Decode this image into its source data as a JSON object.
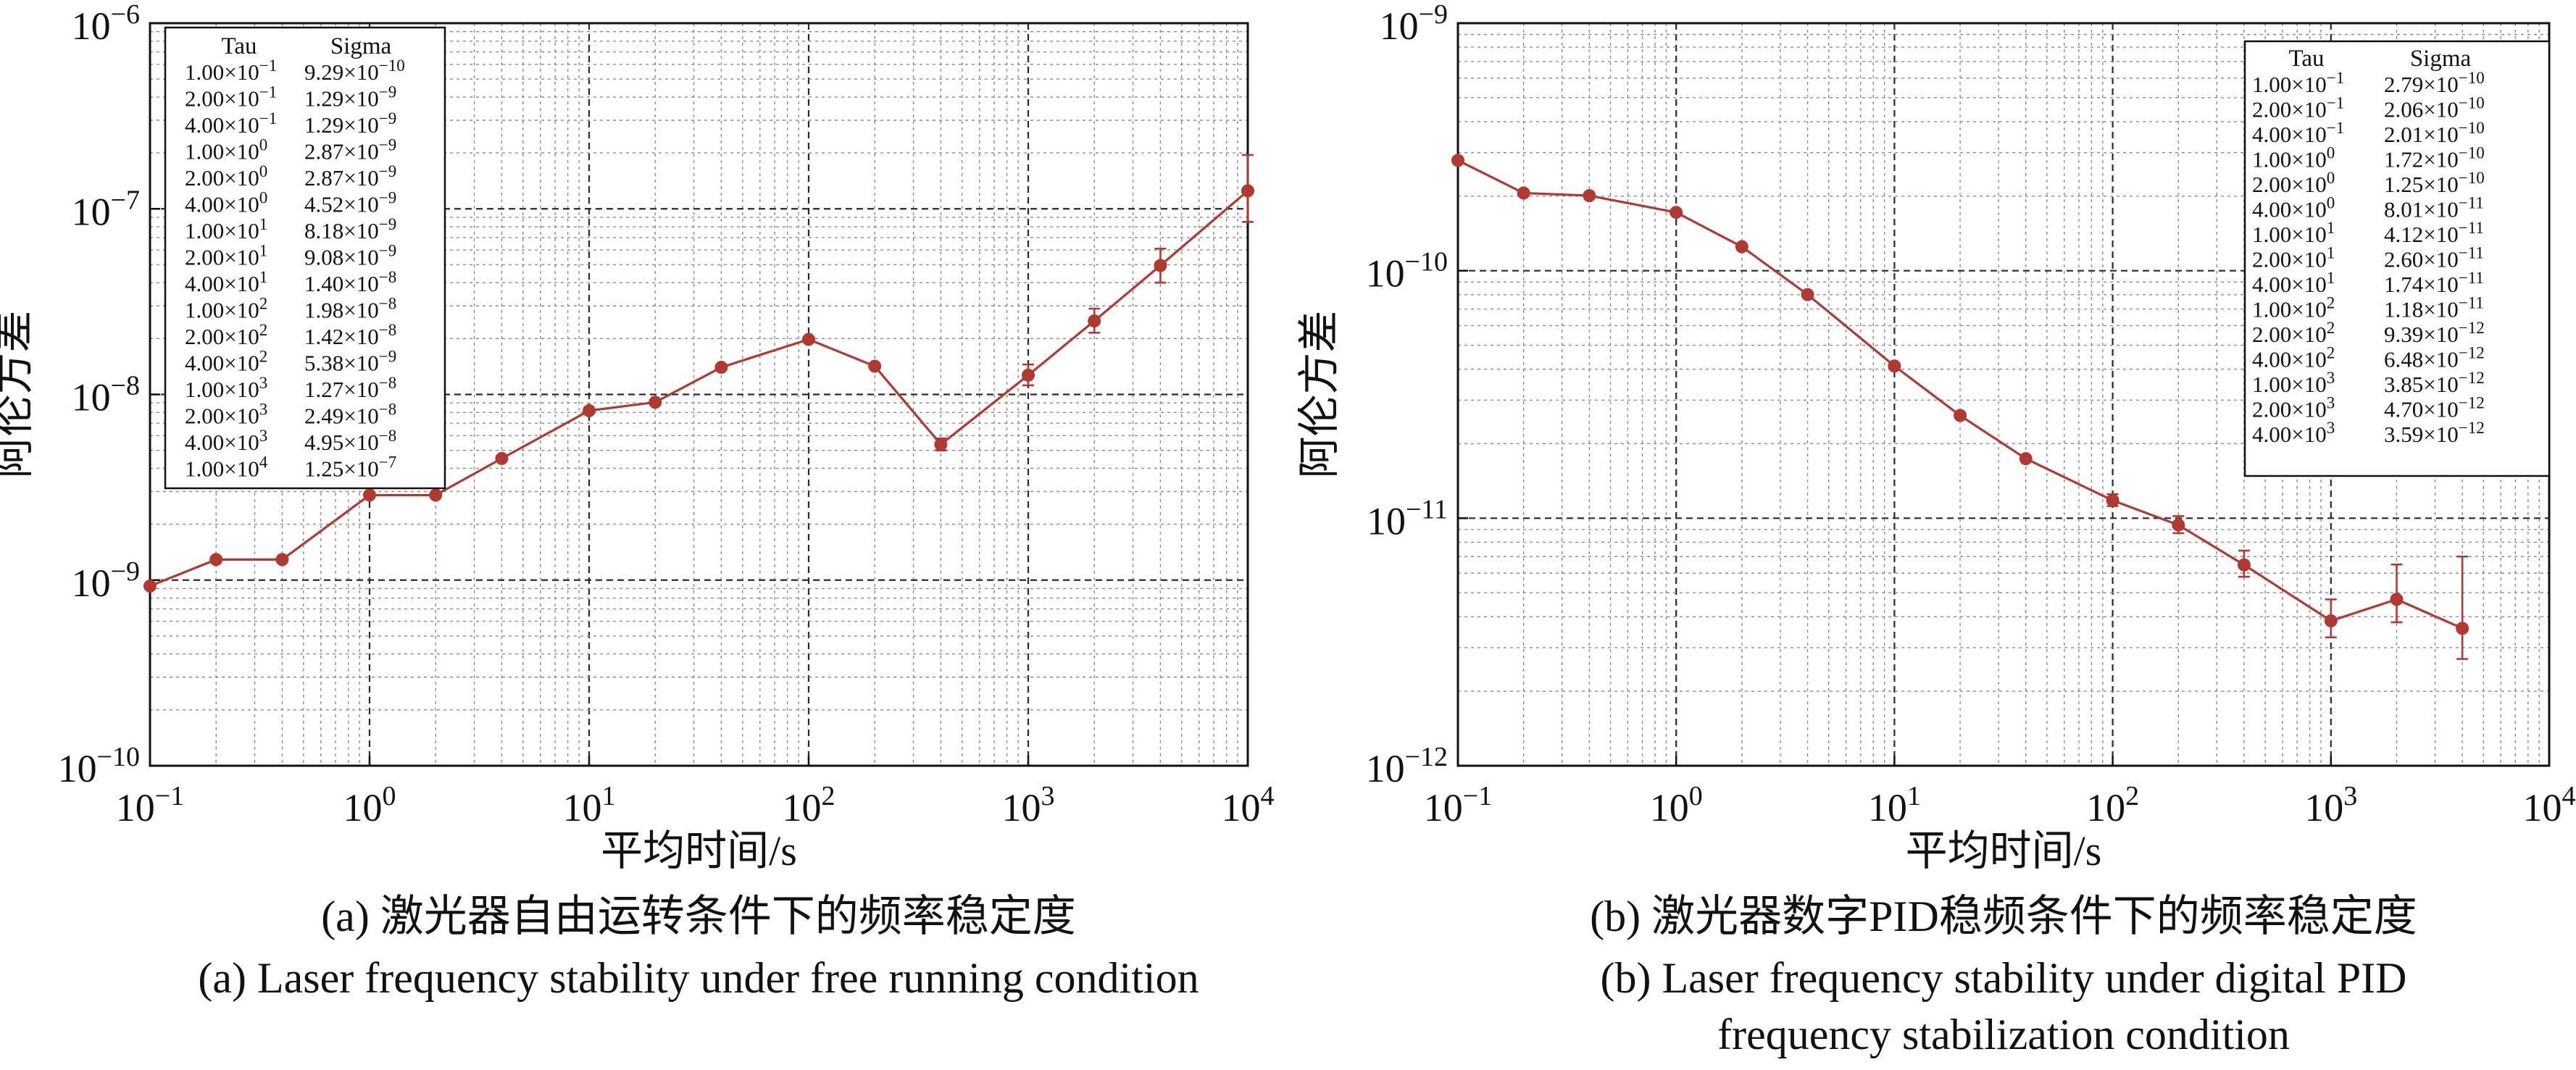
{
  "colors": {
    "series": "#b03a32",
    "grid_minor": "#8a8a8a",
    "grid_major": "#2a2a2a",
    "axis": "#111111"
  },
  "chart_data": [
    {
      "type": "line",
      "panel": "a",
      "xscale": "log",
      "yscale": "log",
      "xlim": [
        0.1,
        10000
      ],
      "ylim": [
        1e-10,
        1e-06
      ],
      "xlabel": "平均时间/s",
      "ylabel": "阿伦方差",
      "x_ticks": [
        {
          "base": "10",
          "exp": "−1"
        },
        {
          "base": "10",
          "exp": "0"
        },
        {
          "base": "10",
          "exp": "1"
        },
        {
          "base": "10",
          "exp": "2"
        },
        {
          "base": "10",
          "exp": "3"
        },
        {
          "base": "10",
          "exp": "4"
        }
      ],
      "y_ticks": [
        {
          "base": "10",
          "exp": "−10"
        },
        {
          "base": "10",
          "exp": "−9"
        },
        {
          "base": "10",
          "exp": "−8"
        },
        {
          "base": "10",
          "exp": "−7"
        },
        {
          "base": "10",
          "exp": "−6"
        }
      ],
      "grid": true,
      "legend_position": "top-left",
      "caption_cn": "(a) 激光器自由运转条件下的频率稳定度",
      "caption_en": [
        "(a) Laser frequency stability under free running condition"
      ],
      "table_headers": [
        "Tau",
        "Sigma"
      ],
      "table_rows": [
        {
          "tau_m": "1.00",
          "tau_e": "−1",
          "sig_m": "9.29",
          "sig_e": "−10"
        },
        {
          "tau_m": "2.00",
          "tau_e": "−1",
          "sig_m": "1.29",
          "sig_e": "−9"
        },
        {
          "tau_m": "4.00",
          "tau_e": "−1",
          "sig_m": "1.29",
          "sig_e": "−9"
        },
        {
          "tau_m": "1.00",
          "tau_e": "0",
          "sig_m": "2.87",
          "sig_e": "−9"
        },
        {
          "tau_m": "2.00",
          "tau_e": "0",
          "sig_m": "2.87",
          "sig_e": "−9"
        },
        {
          "tau_m": "4.00",
          "tau_e": "0",
          "sig_m": "4.52",
          "sig_e": "−9"
        },
        {
          "tau_m": "1.00",
          "tau_e": "1",
          "sig_m": "8.18",
          "sig_e": "−9"
        },
        {
          "tau_m": "2.00",
          "tau_e": "1",
          "sig_m": "9.08",
          "sig_e": "−9"
        },
        {
          "tau_m": "4.00",
          "tau_e": "1",
          "sig_m": "1.40",
          "sig_e": "−8"
        },
        {
          "tau_m": "1.00",
          "tau_e": "2",
          "sig_m": "1.98",
          "sig_e": "−8"
        },
        {
          "tau_m": "2.00",
          "tau_e": "2",
          "sig_m": "1.42",
          "sig_e": "−8"
        },
        {
          "tau_m": "4.00",
          "tau_e": "2",
          "sig_m": "5.38",
          "sig_e": "−9"
        },
        {
          "tau_m": "1.00",
          "tau_e": "3",
          "sig_m": "1.27",
          "sig_e": "−8"
        },
        {
          "tau_m": "2.00",
          "tau_e": "3",
          "sig_m": "2.49",
          "sig_e": "−8"
        },
        {
          "tau_m": "4.00",
          "tau_e": "3",
          "sig_m": "4.95",
          "sig_e": "−8"
        },
        {
          "tau_m": "1.00",
          "tau_e": "4",
          "sig_m": "1.25",
          "sig_e": "−7"
        }
      ],
      "x": [
        0.1,
        0.2,
        0.4,
        1,
        2,
        4,
        10,
        20,
        40,
        100,
        200,
        400,
        1000,
        2000,
        4000,
        10000
      ],
      "y": [
        9.29e-10,
        1.29e-09,
        1.29e-09,
        2.87e-09,
        2.87e-09,
        4.52e-09,
        8.18e-09,
        9.08e-09,
        1.4e-08,
        1.98e-08,
        1.42e-08,
        5.38e-09,
        1.27e-08,
        2.49e-08,
        4.95e-08,
        1.25e-07
      ],
      "error_bars": [
        {
          "x": 400,
          "low": 5e-09,
          "high": 5.8e-09
        },
        {
          "x": 1000,
          "low": 1.12e-08,
          "high": 1.45e-08
        },
        {
          "x": 2000,
          "low": 2.15e-08,
          "high": 2.9e-08
        },
        {
          "x": 4000,
          "low": 4e-08,
          "high": 6.1e-08
        },
        {
          "x": 10000,
          "low": 8.5e-08,
          "high": 1.95e-07
        }
      ]
    },
    {
      "type": "line",
      "panel": "b",
      "xscale": "log",
      "yscale": "log",
      "xlim": [
        0.1,
        10000
      ],
      "ylim": [
        1e-12,
        1e-09
      ],
      "xlabel": "平均时间/s",
      "ylabel": "阿伦方差",
      "x_ticks": [
        {
          "base": "10",
          "exp": "−1"
        },
        {
          "base": "10",
          "exp": "0"
        },
        {
          "base": "10",
          "exp": "1"
        },
        {
          "base": "10",
          "exp": "2"
        },
        {
          "base": "10",
          "exp": "3"
        },
        {
          "base": "10",
          "exp": "4"
        }
      ],
      "y_ticks": [
        {
          "base": "10",
          "exp": "−12"
        },
        {
          "base": "10",
          "exp": "−11"
        },
        {
          "base": "10",
          "exp": "−10"
        },
        {
          "base": "10",
          "exp": "−9"
        }
      ],
      "grid": true,
      "legend_position": "top-right",
      "caption_cn": "(b) 激光器数字PID稳频条件下的频率稳定度",
      "caption_en": [
        "(b) Laser frequency stability under digital PID",
        "frequency stabilization condition"
      ],
      "table_headers": [
        "Tau",
        "Sigma"
      ],
      "table_rows": [
        {
          "tau_m": "1.00",
          "tau_e": "−1",
          "sig_m": "2.79",
          "sig_e": "−10"
        },
        {
          "tau_m": "2.00",
          "tau_e": "−1",
          "sig_m": "2.06",
          "sig_e": "−10"
        },
        {
          "tau_m": "4.00",
          "tau_e": "−1",
          "sig_m": "2.01",
          "sig_e": "−10"
        },
        {
          "tau_m": "1.00",
          "tau_e": "0",
          "sig_m": "1.72",
          "sig_e": "−10"
        },
        {
          "tau_m": "2.00",
          "tau_e": "0",
          "sig_m": "1.25",
          "sig_e": "−10"
        },
        {
          "tau_m": "4.00",
          "tau_e": "0",
          "sig_m": "8.01",
          "sig_e": "−11"
        },
        {
          "tau_m": "1.00",
          "tau_e": "1",
          "sig_m": "4.12",
          "sig_e": "−11"
        },
        {
          "tau_m": "2.00",
          "tau_e": "1",
          "sig_m": "2.60",
          "sig_e": "−11"
        },
        {
          "tau_m": "4.00",
          "tau_e": "1",
          "sig_m": "1.74",
          "sig_e": "−11"
        },
        {
          "tau_m": "1.00",
          "tau_e": "2",
          "sig_m": "1.18",
          "sig_e": "−11"
        },
        {
          "tau_m": "2.00",
          "tau_e": "2",
          "sig_m": "9.39",
          "sig_e": "−12"
        },
        {
          "tau_m": "4.00",
          "tau_e": "2",
          "sig_m": "6.48",
          "sig_e": "−12"
        },
        {
          "tau_m": "1.00",
          "tau_e": "3",
          "sig_m": "3.85",
          "sig_e": "−12"
        },
        {
          "tau_m": "2.00",
          "tau_e": "3",
          "sig_m": "4.70",
          "sig_e": "−12"
        },
        {
          "tau_m": "4.00",
          "tau_e": "3",
          "sig_m": "3.59",
          "sig_e": "−12"
        }
      ],
      "x": [
        0.1,
        0.2,
        0.4,
        1,
        2,
        4,
        10,
        20,
        40,
        100,
        200,
        400,
        1000,
        2000,
        4000
      ],
      "y": [
        2.79e-10,
        2.06e-10,
        2.01e-10,
        1.72e-10,
        1.25e-10,
        8.01e-11,
        4.12e-11,
        2.6e-11,
        1.74e-11,
        1.18e-11,
        9.39e-12,
        6.48e-12,
        3.85e-12,
        4.7e-12,
        3.59e-12
      ],
      "error_bars": [
        {
          "x": 100,
          "low": 1.12e-11,
          "high": 1.25e-11
        },
        {
          "x": 200,
          "low": 8.7e-12,
          "high": 1.02e-11
        },
        {
          "x": 400,
          "low": 5.8e-12,
          "high": 7.4e-12
        },
        {
          "x": 1000,
          "low": 3.3e-12,
          "high": 4.7e-12
        },
        {
          "x": 2000,
          "low": 3.8e-12,
          "high": 6.5e-12
        },
        {
          "x": 4000,
          "low": 2.7e-12,
          "high": 7e-12
        }
      ]
    }
  ]
}
